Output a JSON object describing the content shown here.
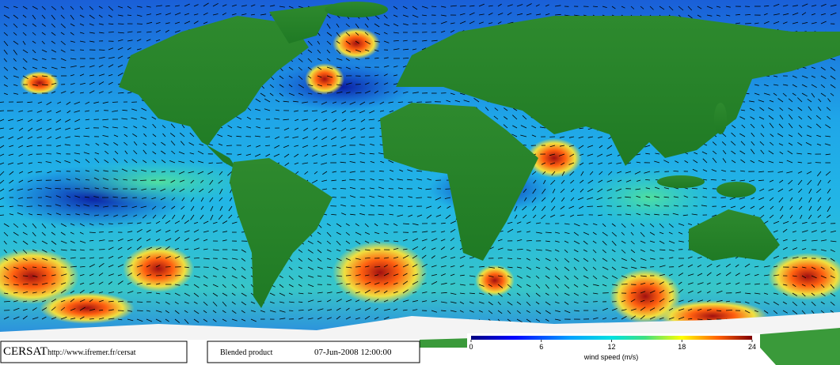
{
  "footer": {
    "brand": "CERSAT",
    "url": "http://www.ifremer.fr/cersat",
    "product": "Blended product",
    "date": "07-Jun-2008 12:00:00"
  },
  "colorbar": {
    "label": "wind speed (m/s)",
    "lim": [
      0,
      24
    ],
    "ticks": [
      0,
      6,
      12,
      18,
      24
    ]
  }
}
